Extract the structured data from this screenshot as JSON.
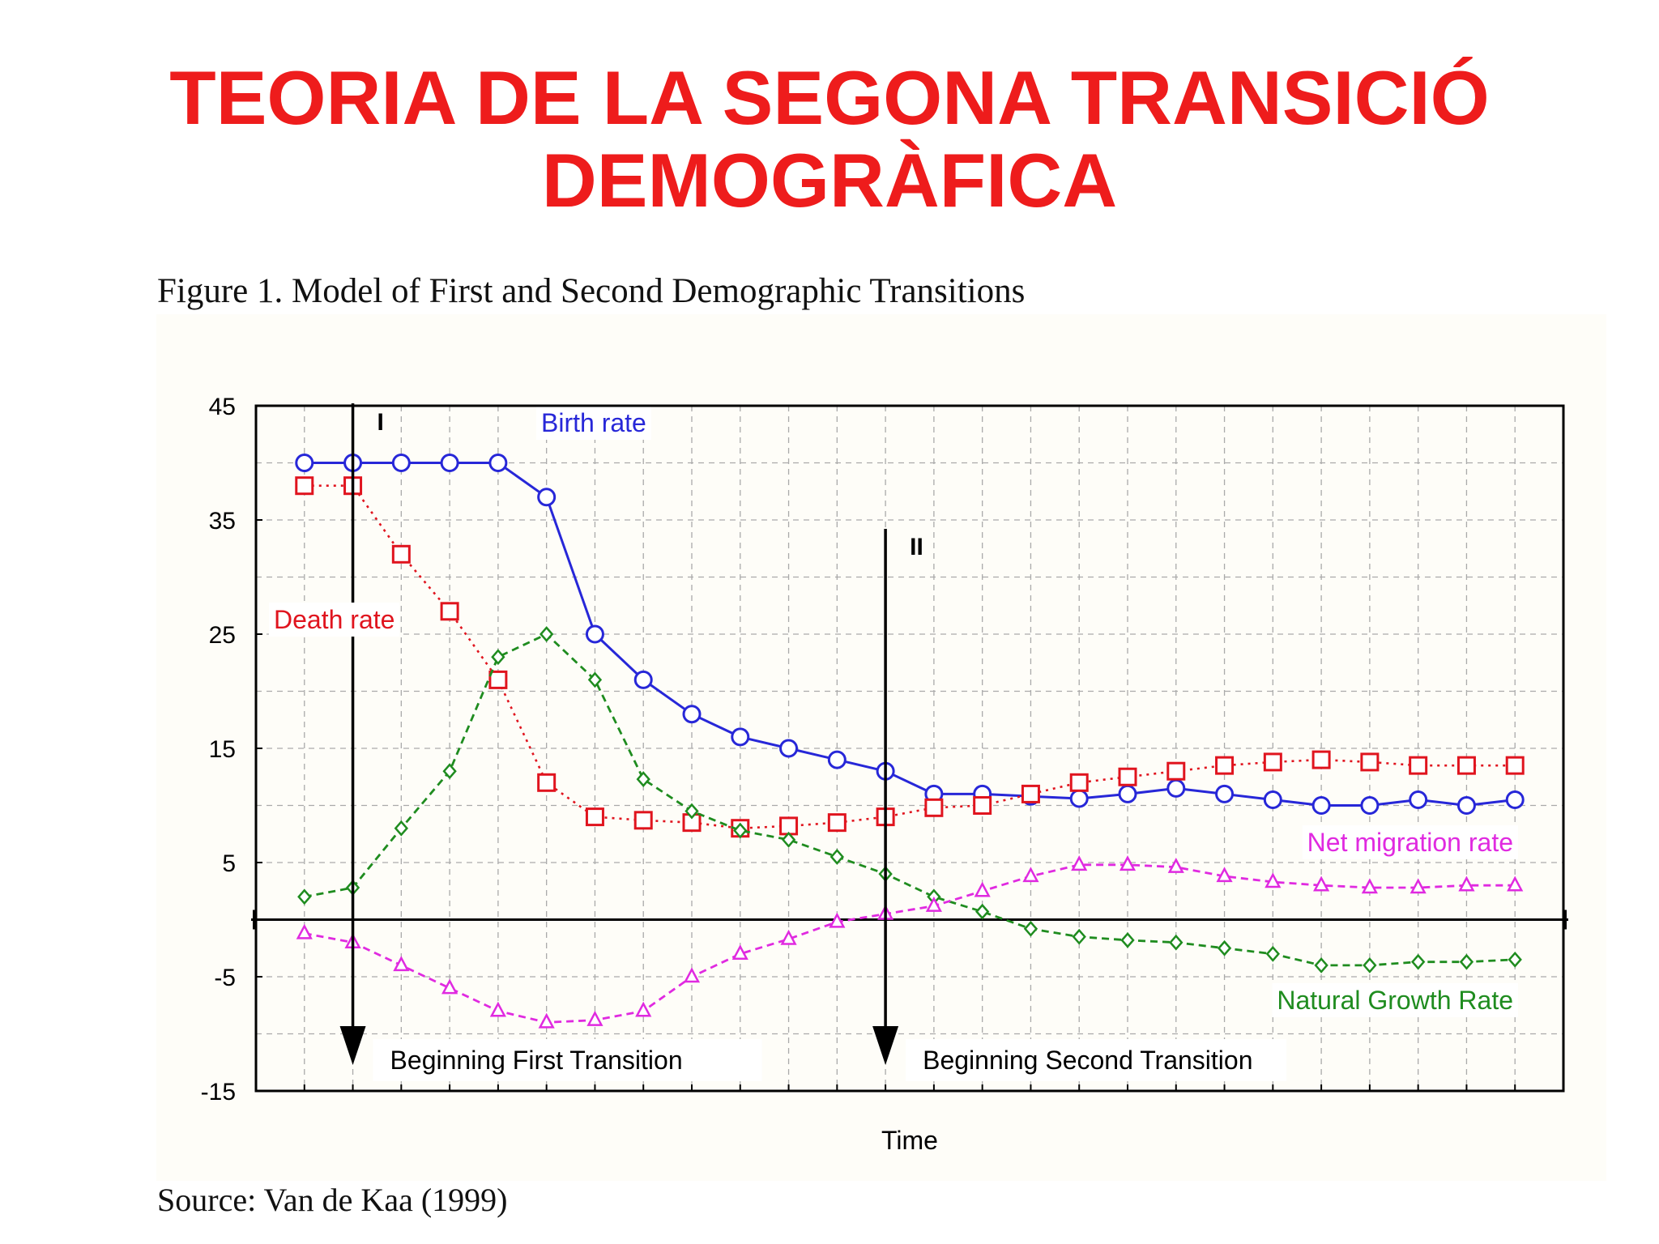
{
  "slide": {
    "title_line1": "TEORIA DE LA SEGONA TRANSICIÓ",
    "title_line2": "DEMOGRÀFICA",
    "caption": "Figure 1. Model of First and Second Demographic Transitions",
    "source": "Source: Van de Kaa (1999)"
  },
  "colors": {
    "title": "#ee1c1c",
    "birth": "#2727d8",
    "death": "#e0141e",
    "natural": "#1f8c1f",
    "migration": "#e02ae0",
    "axis": "#000000",
    "grid": "#aaaaaa"
  },
  "chart_data": {
    "type": "line",
    "title": "",
    "xlabel": "Time",
    "ylabel": "",
    "ylim": [
      -15,
      45
    ],
    "yticks": [
      45,
      35,
      25,
      15,
      5,
      -5,
      -15
    ],
    "x": [
      1,
      2,
      3,
      4,
      5,
      6,
      7,
      8,
      9,
      10,
      11,
      12,
      13,
      14,
      15,
      16,
      17,
      18,
      19,
      20,
      21,
      22,
      23,
      24,
      25,
      26
    ],
    "xlim": [
      0,
      27
    ],
    "grid": true,
    "series": [
      {
        "key": "birth",
        "name": "Birth rate",
        "marker": "circle",
        "dash": "solid",
        "values": [
          40,
          40,
          40,
          40,
          40,
          37,
          25,
          21,
          18,
          16,
          15,
          14,
          13,
          11,
          11,
          10.8,
          10.6,
          11,
          11.5,
          11,
          10.5,
          10,
          10,
          10.5,
          10,
          10.5
        ]
      },
      {
        "key": "death",
        "name": "Death rate",
        "marker": "square",
        "dash": "dotted",
        "values": [
          38,
          38,
          32,
          27,
          21,
          12,
          9,
          8.7,
          8.5,
          8,
          8.2,
          8.5,
          9,
          9.8,
          10,
          11,
          12,
          12.5,
          13,
          13.5,
          13.8,
          14,
          13.8,
          13.5,
          13.5,
          13.5
        ]
      },
      {
        "key": "natural",
        "name": "Natural Growth Rate",
        "marker": "diamond",
        "dash": "dashed",
        "values": [
          2,
          2.8,
          8,
          13,
          23,
          25,
          21,
          12.3,
          9.5,
          7.8,
          7,
          5.5,
          4,
          2,
          0.7,
          -0.8,
          -1.5,
          -1.8,
          -2,
          -2.5,
          -3,
          -4,
          -4,
          -3.7,
          -3.7,
          -3.5
        ]
      },
      {
        "key": "migration",
        "name": "Net migration rate",
        "marker": "triangle",
        "dash": "dashed",
        "values": [
          -1.2,
          -2,
          -4,
          -6,
          -8,
          -9,
          -8.8,
          -8,
          -5,
          -3,
          -1.7,
          -0.2,
          0.5,
          1.2,
          2.5,
          3.8,
          4.8,
          4.8,
          4.6,
          3.8,
          3.3,
          3,
          2.8,
          2.8,
          3,
          3
        ]
      }
    ],
    "markers": [
      {
        "label": "I",
        "x": 2,
        "annotation": "Beginning First Transition"
      },
      {
        "label": "II",
        "x": 13,
        "annotation": "Beginning Second Transition"
      }
    ]
  }
}
